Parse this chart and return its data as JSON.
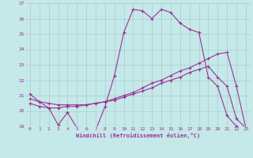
{
  "xlabel": "Windchill (Refroidissement éolien,°C)",
  "bg_color": "#c5e8e8",
  "line_color": "#993399",
  "grid_color": "#aacccc",
  "xlim": [
    -0.5,
    23.5
  ],
  "ylim": [
    19,
    27
  ],
  "yticks": [
    19,
    20,
    21,
    22,
    23,
    24,
    25,
    26,
    27
  ],
  "xticks": [
    0,
    1,
    2,
    3,
    4,
    5,
    6,
    7,
    8,
    9,
    10,
    11,
    12,
    13,
    14,
    15,
    16,
    17,
    18,
    19,
    20,
    21,
    22,
    23
  ],
  "series1_x": [
    0,
    1,
    2,
    3,
    4,
    5,
    6,
    7,
    8,
    9,
    10,
    11,
    12,
    13,
    14,
    15,
    16,
    17,
    18,
    19,
    20,
    21,
    22,
    23
  ],
  "series1_y": [
    21.1,
    20.6,
    20.2,
    19.1,
    19.9,
    18.9,
    18.8,
    18.75,
    20.3,
    22.3,
    25.1,
    26.6,
    26.5,
    26.0,
    26.6,
    26.4,
    25.7,
    25.3,
    25.1,
    22.2,
    21.6,
    19.7,
    19.0,
    18.9
  ],
  "series2_x": [
    0,
    1,
    2,
    3,
    4,
    5,
    6,
    7,
    8,
    9,
    10,
    11,
    12,
    13,
    14,
    15,
    16,
    17,
    18,
    19,
    20,
    21,
    22,
    23
  ],
  "series2_y": [
    20.5,
    20.3,
    20.2,
    20.2,
    20.3,
    20.3,
    20.4,
    20.5,
    20.6,
    20.8,
    21.0,
    21.2,
    21.5,
    21.8,
    22.0,
    22.3,
    22.6,
    22.8,
    23.1,
    23.4,
    23.7,
    23.8,
    21.6,
    18.9
  ],
  "series3_x": [
    0,
    1,
    2,
    3,
    4,
    5,
    6,
    7,
    8,
    9,
    10,
    11,
    12,
    13,
    14,
    15,
    16,
    17,
    18,
    19,
    20,
    21,
    22,
    23
  ],
  "series3_y": [
    20.8,
    20.6,
    20.5,
    20.4,
    20.4,
    20.4,
    20.4,
    20.5,
    20.6,
    20.7,
    20.9,
    21.1,
    21.3,
    21.5,
    21.8,
    22.0,
    22.2,
    22.5,
    22.7,
    22.9,
    22.2,
    21.6,
    19.5,
    18.9
  ]
}
